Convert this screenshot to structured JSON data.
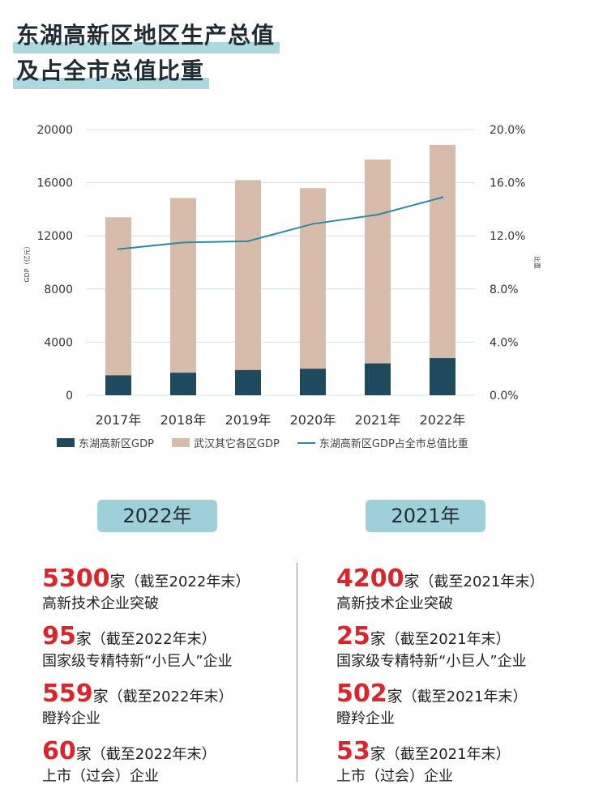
{
  "title": {
    "line1": "东湖高新区地区生产总值",
    "line2": "及占全市总值比重"
  },
  "colors": {
    "dark": "#1f4a5e",
    "light": "#d7bcab",
    "line": "#2b8aa6",
    "red": "#d8262c",
    "pill": "#9fd0da",
    "highlight": "#aed8df"
  },
  "chart_data": {
    "type": "bar",
    "stacked": true,
    "categories": [
      "2017年",
      "2018年",
      "2019年",
      "2020年",
      "2021年",
      "2022年"
    ],
    "series": [
      {
        "name": "东湖高新区GDP",
        "values": [
          1500,
          1700,
          1900,
          2000,
          2400,
          2800
        ],
        "color": "#1f4a5e"
      },
      {
        "name": "武汉其它各区GDP",
        "values": [
          11900,
          13150,
          14300,
          13600,
          15350,
          16050
        ],
        "color": "#d7bcab"
      }
    ],
    "line_series": {
      "name": "东湖高新区GDP占全市总值比重",
      "values": [
        11.0,
        11.5,
        11.6,
        12.9,
        13.6,
        14.9
      ],
      "axis": "right",
      "color": "#2b8aa6"
    },
    "ylabel_left": "GDP（亿元）",
    "ylabel_right": "比重",
    "ylim_left": [
      0,
      20000
    ],
    "yticks_left": [
      "0",
      "4000",
      "8000",
      "12000",
      "16000",
      "20000"
    ],
    "ylim_right": [
      0,
      20
    ],
    "yticks_right": [
      "0.0%",
      "4.0%",
      "8.0%",
      "12.0%",
      "16.0%",
      "20.0%"
    ],
    "grid": true,
    "legend": "bottom"
  },
  "stats": {
    "left": {
      "year": "2022年",
      "items": [
        {
          "num": "5300",
          "unit": "家",
          "note": "（截至2022年末）",
          "desc": "高新技术企业突破"
        },
        {
          "num": "95",
          "unit": "家",
          "note": "（截至2022年末）",
          "desc": "国家级专精特新“小巨人”企业"
        },
        {
          "num": "559",
          "unit": "家",
          "note": "（截至2022年末）",
          "desc": "瞪羚企业"
        },
        {
          "num": "60",
          "unit": "家",
          "note": "（截至2022年末）",
          "desc": "上市（过会）企业"
        }
      ]
    },
    "right": {
      "year": "2021年",
      "items": [
        {
          "num": "4200",
          "unit": "家",
          "note": "（截至2021年末）",
          "desc": "高新技术企业突破"
        },
        {
          "num": "25",
          "unit": "家",
          "note": "（截至2021年末）",
          "desc": "国家级专精特新“小巨人”企业"
        },
        {
          "num": "502",
          "unit": "家",
          "note": "（截至2021年末）",
          "desc": "瞪羚企业"
        },
        {
          "num": "53",
          "unit": "家",
          "note": "（截至2021年末）",
          "desc": "上市（过会）企业"
        }
      ]
    }
  }
}
